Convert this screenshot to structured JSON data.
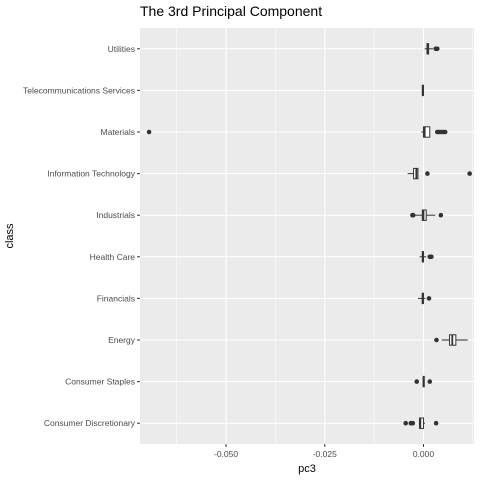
{
  "chart_data": {
    "type": "boxplot",
    "orientation": "horizontal",
    "title": "The 3rd Principal Component",
    "xlabel": "pc3",
    "ylabel": "class",
    "xlim": [
      -0.0718,
      0.0128
    ],
    "xticks": [
      -0.05,
      -0.025,
      0.0
    ],
    "xtick_labels": [
      "-0.050",
      "-0.025",
      "0.000"
    ],
    "grid": true,
    "legend": "none",
    "colors": {
      "panel": "#ebebeb",
      "grid": "#ffffff",
      "box_fill": "#ffffff",
      "box_line": "#333333",
      "point": "#333333"
    },
    "categories": [
      "Consumer Discretionary",
      "Consumer Staples",
      "Energy",
      "Financials",
      "Health Care",
      "Industrials",
      "Information Technology",
      "Materials",
      "Telecommunications Services",
      "Utilities"
    ],
    "boxes": [
      {
        "class": "Consumer Discretionary",
        "min": -0.0012,
        "q1": -0.001,
        "median": -0.0008,
        "q3": 0.0,
        "max": 0.0004,
        "outliers": [
          -0.0045,
          -0.0032,
          -0.0027,
          0.0032
        ]
      },
      {
        "class": "Consumer Staples",
        "min": 0.0,
        "q1": 0.0,
        "median": 0.0,
        "q3": 0.0,
        "max": 0.0,
        "outliers": [
          -0.0017,
          0.0016
        ]
      },
      {
        "class": "Energy",
        "min": 0.0046,
        "q1": 0.0066,
        "median": 0.0073,
        "q3": 0.0082,
        "max": 0.0112,
        "outliers": [
          0.0033
        ]
      },
      {
        "class": "Financials",
        "min": -0.0014,
        "q1": -0.0003,
        "median": -0.0002,
        "q3": 0.0,
        "max": 0.0005,
        "outliers": [
          0.0014
        ]
      },
      {
        "class": "Health Care",
        "min": -0.001,
        "q1": -0.0003,
        "median": -0.0001,
        "q3": 0.0,
        "max": 0.0007,
        "outliers": [
          0.0016,
          0.002
        ]
      },
      {
        "class": "Industrials",
        "min": -0.0022,
        "q1": -0.0003,
        "median": 0.0,
        "q3": 0.0007,
        "max": 0.003,
        "outliers": [
          -0.0028,
          -0.0026,
          0.0044
        ]
      },
      {
        "class": "Information Technology",
        "min": -0.004,
        "q1": -0.0025,
        "median": -0.0018,
        "q3": -0.0014,
        "max": -0.0014,
        "outliers": [
          0.001,
          0.0117
        ]
      },
      {
        "class": "Materials",
        "min": -0.0005,
        "q1": 0.0,
        "median": 0.0003,
        "q3": 0.0016,
        "max": 0.0017,
        "outliers": [
          -0.0695,
          0.0035,
          0.004,
          0.0045,
          0.005,
          0.0055
        ]
      },
      {
        "class": "Telecommunications Services",
        "min": -0.0002,
        "q1": -0.0002,
        "median": -0.0002,
        "q3": -0.0002,
        "max": -0.0002,
        "outliers": []
      },
      {
        "class": "Utilities",
        "min": 0.0003,
        "q1": 0.0009,
        "median": 0.0011,
        "q3": 0.0013,
        "max": 0.0024,
        "outliers": [
          0.0031,
          0.0035
        ]
      }
    ]
  }
}
